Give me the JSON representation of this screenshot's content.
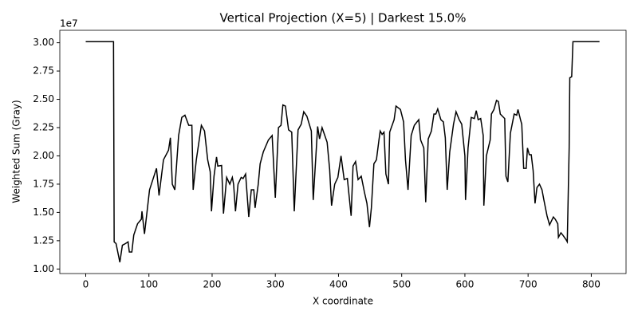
{
  "chart_data": {
    "type": "line",
    "title": "Vertical Projection (X=5) | Darkest 15.0%",
    "x_label": "X coordinate",
    "y_label": "Weighted Sum (Gray)",
    "y_offset_label": "1e7",
    "color": "#000000",
    "xlim": [
      -41,
      855
    ],
    "ylim": [
      0.96,
      3.11
    ],
    "xticks": [
      0,
      100,
      200,
      300,
      400,
      500,
      600,
      700,
      800
    ],
    "yticks": [
      {
        "value": 1,
        "label": "1.00"
      },
      {
        "value": 1.25,
        "label": "1.25"
      },
      {
        "value": 1.5,
        "label": "1.50"
      },
      {
        "value": 1.75,
        "label": "1.75"
      },
      {
        "value": 2,
        "label": "2.00"
      },
      {
        "value": 2.25,
        "label": "2.25"
      },
      {
        "value": 2.5,
        "label": "2.50"
      },
      {
        "value": 2.75,
        "label": "2.75"
      },
      {
        "value": 3,
        "label": "3.00"
      }
    ],
    "x": [
      0,
      44,
      45,
      48,
      54,
      58,
      63,
      67,
      69,
      73,
      76,
      82,
      88,
      89,
      93,
      101,
      112,
      116,
      123,
      131,
      134,
      137,
      141,
      147,
      152,
      157,
      163,
      168,
      170,
      175,
      183,
      188,
      193,
      197,
      199,
      203,
      207,
      209,
      215,
      218,
      223,
      228,
      232,
      234,
      237,
      241,
      246,
      249,
      253,
      258,
      262,
      266,
      268,
      273,
      276,
      281,
      289,
      295,
      300,
      305,
      309,
      312,
      316,
      321,
      326,
      330,
      336,
      341,
      345,
      350,
      357,
      360,
      367,
      370,
      374,
      382,
      386,
      389,
      394,
      399,
      404,
      409,
      414,
      420,
      423,
      427,
      431,
      436,
      441,
      445,
      449,
      452,
      456,
      460,
      464,
      466,
      469,
      472,
      475,
      479,
      481,
      488,
      491,
      498,
      503,
      506,
      510,
      515,
      520,
      527,
      530,
      535,
      538,
      542,
      547,
      551,
      554,
      557,
      562,
      566,
      569,
      572,
      576,
      582,
      586,
      591,
      595,
      600,
      601,
      605,
      610,
      615,
      618,
      621,
      625,
      629,
      630,
      634,
      640,
      642,
      646,
      650,
      653,
      656,
      663,
      665,
      668,
      672,
      678,
      682,
      684,
      688,
      690,
      693,
      697,
      699,
      702,
      705,
      708,
      711,
      714,
      718,
      722,
      725,
      730,
      734,
      740,
      743,
      747,
      748,
      752,
      755,
      760,
      762,
      765,
      766,
      769,
      771,
      813
    ],
    "values": [
      3.01,
      3.01,
      1.24,
      1.225,
      1.06,
      1.21,
      1.225,
      1.24,
      1.15,
      1.15,
      1.3,
      1.4,
      1.44,
      1.51,
      1.31,
      1.7,
      1.89,
      1.65,
      1.965,
      2.05,
      2.16,
      1.75,
      1.7,
      2.18,
      2.34,
      2.36,
      2.27,
      2.27,
      1.7,
      1.965,
      2.27,
      2.22,
      1.965,
      1.86,
      1.51,
      1.82,
      1.99,
      1.91,
      1.915,
      1.49,
      1.81,
      1.75,
      1.81,
      1.75,
      1.51,
      1.75,
      1.81,
      1.8,
      1.84,
      1.46,
      1.7,
      1.7,
      1.54,
      1.75,
      1.93,
      2.035,
      2.14,
      2.18,
      1.63,
      2.25,
      2.27,
      2.45,
      2.44,
      2.23,
      2.21,
      1.51,
      2.23,
      2.28,
      2.39,
      2.35,
      2.22,
      1.61,
      2.26,
      2.15,
      2.25,
      2.12,
      1.88,
      1.56,
      1.75,
      1.81,
      2.0,
      1.79,
      1.8,
      1.47,
      1.91,
      1.95,
      1.79,
      1.82,
      1.68,
      1.58,
      1.37,
      1.54,
      1.93,
      1.965,
      2.14,
      2.22,
      2.19,
      2.21,
      1.84,
      1.75,
      2.21,
      2.32,
      2.44,
      2.41,
      2.3,
      1.965,
      1.7,
      2.18,
      2.27,
      2.32,
      2.14,
      2.07,
      1.59,
      2.15,
      2.22,
      2.37,
      2.37,
      2.415,
      2.32,
      2.3,
      2.16,
      1.7,
      2.035,
      2.28,
      2.39,
      2.32,
      2.28,
      2.0,
      1.61,
      2.07,
      2.34,
      2.33,
      2.4,
      2.32,
      2.33,
      2.18,
      1.56,
      2.0,
      2.14,
      2.37,
      2.41,
      2.49,
      2.48,
      2.37,
      2.33,
      1.82,
      1.77,
      2.2,
      2.37,
      2.36,
      2.41,
      2.32,
      2.28,
      1.89,
      1.89,
      2.07,
      2.01,
      2.01,
      1.87,
      1.58,
      1.72,
      1.75,
      1.7,
      1.61,
      1.47,
      1.39,
      1.46,
      1.44,
      1.4,
      1.28,
      1.32,
      1.3,
      1.26,
      1.24,
      2.07,
      2.69,
      2.7,
      3.01,
      3.01
    ]
  }
}
